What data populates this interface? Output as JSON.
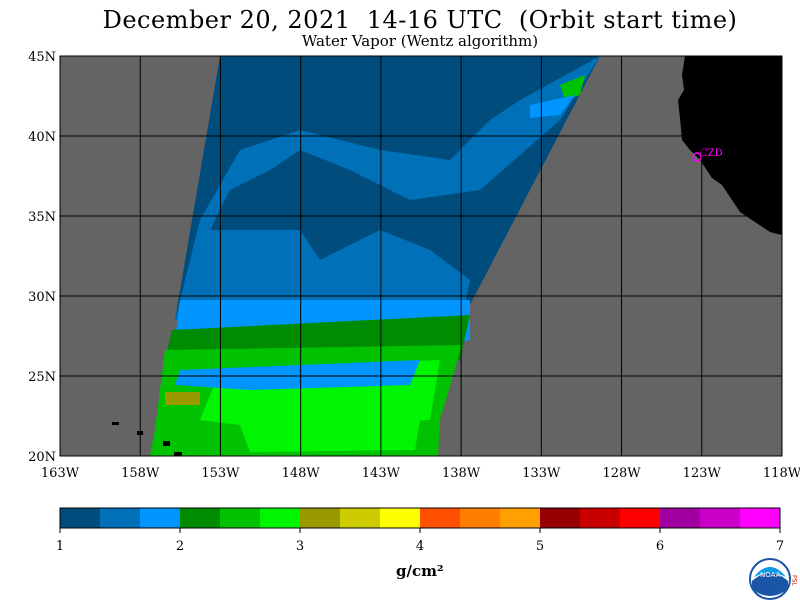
{
  "title": "December 20, 2021  14-16 UTC  (Orbit start time)",
  "subtitle": "Water Vapor (Wentz algorithm)",
  "map": {
    "lat_labels": [
      "45N",
      "40N",
      "35N",
      "30N",
      "25N",
      "20N"
    ],
    "lon_labels": [
      "163W",
      "158W",
      "153W",
      "148W",
      "143W",
      "138W",
      "133W",
      "128W",
      "123W",
      "118W"
    ],
    "lat_range": [
      20,
      45
    ],
    "lon_range": [
      -163,
      -118
    ],
    "place_label": "CZD",
    "colors": {
      "no_data": "#646464",
      "land": "#000000",
      "grid": "#000000",
      "place_marker": "#ff00ff"
    }
  },
  "colorbar": {
    "tick_labels": [
      "1",
      "2",
      "3",
      "4",
      "5",
      "6",
      "7"
    ],
    "range": [
      1,
      7
    ],
    "unit": "g/cm²",
    "colors": [
      "#004c7d",
      "#0070b8",
      "#0095ff",
      "#008c00",
      "#00c200",
      "#00f500",
      "#999900",
      "#cccc00",
      "#ffff00",
      "#ff5000",
      "#ff7d00",
      "#ffa000",
      "#960000",
      "#c80000",
      "#ff0000",
      "#a000a0",
      "#c800c8",
      "#ff00ff"
    ]
  },
  "logo": {
    "name": "noaa-logo",
    "side_text": "PSL"
  }
}
